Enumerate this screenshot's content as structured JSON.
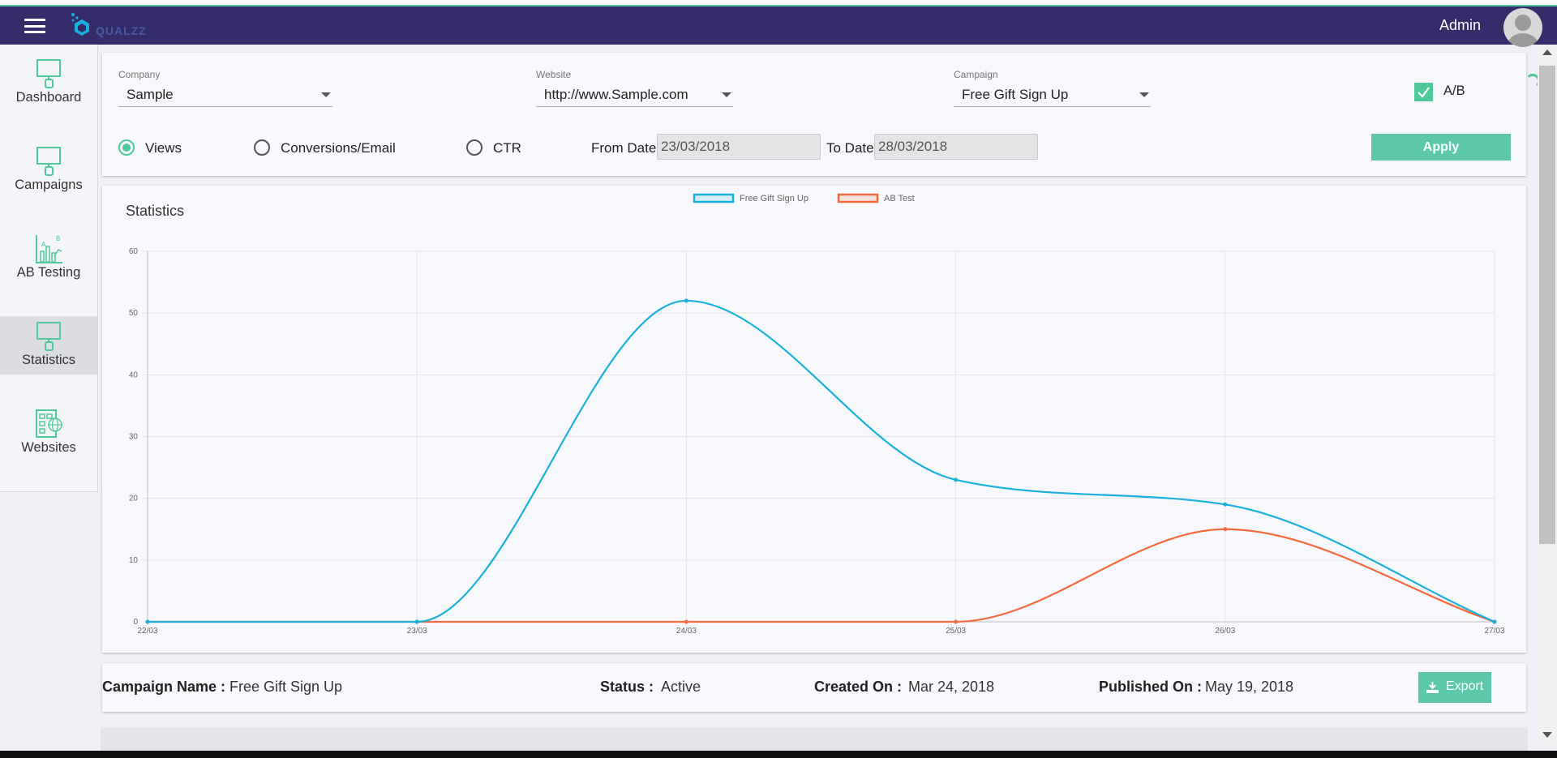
{
  "header": {
    "menu_icon": "hamburger-icon",
    "logo_text": "QUALZZ",
    "user_label": "Admin",
    "avatar_icon": "user-avatar-icon",
    "colors": {
      "topbar": "#352c6a",
      "accent": "#4fc89c"
    }
  },
  "sidebar": {
    "items": [
      {
        "label": "Dashboard",
        "icon": "dashboard-icon",
        "active": false
      },
      {
        "label": "Campaigns",
        "icon": "campaigns-icon",
        "active": false
      },
      {
        "label": "AB Testing",
        "icon": "ab-testing-icon",
        "active": false
      },
      {
        "label": "Statistics",
        "icon": "statistics-icon",
        "active": true
      },
      {
        "label": "Websites",
        "icon": "websites-icon",
        "active": false
      }
    ]
  },
  "filters": {
    "company": {
      "label": "Company",
      "value": "Sample"
    },
    "website": {
      "label": "Website",
      "value": "http://www.Sample.com"
    },
    "campaign": {
      "label": "Campaign",
      "value": "Free Gift Sign Up"
    },
    "ab": {
      "label": "A/B",
      "checked": true
    },
    "metrics": [
      {
        "label": "Views",
        "selected": true
      },
      {
        "label": "Conversions/Email",
        "selected": false
      },
      {
        "label": "CTR",
        "selected": false
      }
    ],
    "from_label": "From Date",
    "from_value": "23/03/2018",
    "to_label": "To Date",
    "to_value": "28/03/2018",
    "apply_label": "Apply"
  },
  "statistics": {
    "title": "Statistics"
  },
  "chart_data": {
    "type": "line",
    "categories": [
      "22/03",
      "23/03",
      "24/03",
      "25/03",
      "26/03",
      "27/03"
    ],
    "series": [
      {
        "name": "Free Gift Sign Up",
        "color": "#1ab0dc",
        "values": [
          0,
          0,
          52,
          23,
          19,
          0
        ]
      },
      {
        "name": "AB Test",
        "color": "#f26a3d",
        "values": [
          0,
          0,
          0,
          0,
          15,
          0
        ]
      }
    ],
    "yticks": [
      0,
      10,
      20,
      30,
      40,
      50,
      60
    ],
    "ylim": [
      0,
      60
    ],
    "grid": true,
    "legend": "top-center",
    "smooth": true
  },
  "campaign_info": {
    "name_label": "Campaign Name :",
    "name_value": "Free Gift Sign Up",
    "status_label": "Status :",
    "status_value": "Active",
    "created_label": "Created On :",
    "created_value": "Mar 24, 2018",
    "published_label": "Published On :",
    "published_value": "May 19, 2018",
    "export_label": "Export",
    "export_icon": "download-icon"
  }
}
